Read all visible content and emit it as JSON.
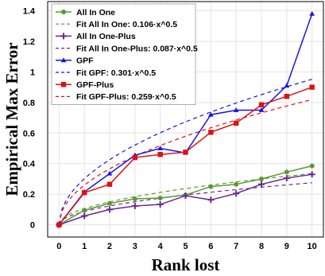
{
  "chart_data": {
    "type": "line",
    "title": "",
    "xlabel": "Rank lost",
    "ylabel": "Empirical Max Error",
    "xlim": [
      -0.45,
      10.45
    ],
    "ylim": [
      -0.08,
      1.46
    ],
    "xticks": [
      "0",
      "1",
      "2",
      "3",
      "4",
      "5",
      "6",
      "7",
      "8",
      "9",
      "10"
    ],
    "yticks": [
      "0",
      "0.2",
      "0.4",
      "0.6",
      "0.8",
      "1",
      "1.2",
      "1.4"
    ],
    "grid": true,
    "legend_position": "top-left",
    "x": [
      0,
      1,
      2,
      3,
      4,
      5,
      6,
      7,
      8,
      9,
      10
    ],
    "series": [
      {
        "name": "All In One",
        "kind": "data",
        "marker": "circle",
        "color": "#5a9a32",
        "values": [
          0.0,
          0.095,
          0.14,
          0.17,
          0.175,
          0.195,
          0.25,
          0.265,
          0.3,
          0.345,
          0.385
        ]
      },
      {
        "name": "Fit All In One: 0.106·x^0.5",
        "kind": "fit",
        "coef": 0.106,
        "color": "#5a9a32"
      },
      {
        "name": "All In One-Plus",
        "kind": "data",
        "marker": "plus",
        "color": "#6b2a93",
        "values": [
          0.0,
          0.058,
          0.1,
          0.123,
          0.133,
          0.19,
          0.163,
          0.205,
          0.265,
          0.305,
          0.33
        ]
      },
      {
        "name": "Fit All In One-Plus: 0.087·x^0.5",
        "kind": "fit",
        "coef": 0.087,
        "color": "#6b2a93"
      },
      {
        "name": "GPF",
        "kind": "data",
        "marker": "triangle",
        "color": "#1515e6",
        "values": [
          0.0,
          0.215,
          0.335,
          0.455,
          0.5,
          0.47,
          0.72,
          0.75,
          0.75,
          0.91,
          1.38
        ]
      },
      {
        "name": "Fit GPF: 0.301·x^0.5",
        "kind": "fit",
        "coef": 0.301,
        "color": "#1515e6"
      },
      {
        "name": "GPF-Plus",
        "kind": "data",
        "marker": "square",
        "color": "#dd1111",
        "values": [
          0.0,
          0.21,
          0.265,
          0.44,
          0.46,
          0.475,
          0.605,
          0.665,
          0.785,
          0.84,
          0.9
        ]
      },
      {
        "name": "Fit GPF-Plus: 0.259·x^0.5",
        "kind": "fit",
        "coef": 0.259,
        "color": "#dd1111"
      }
    ]
  }
}
